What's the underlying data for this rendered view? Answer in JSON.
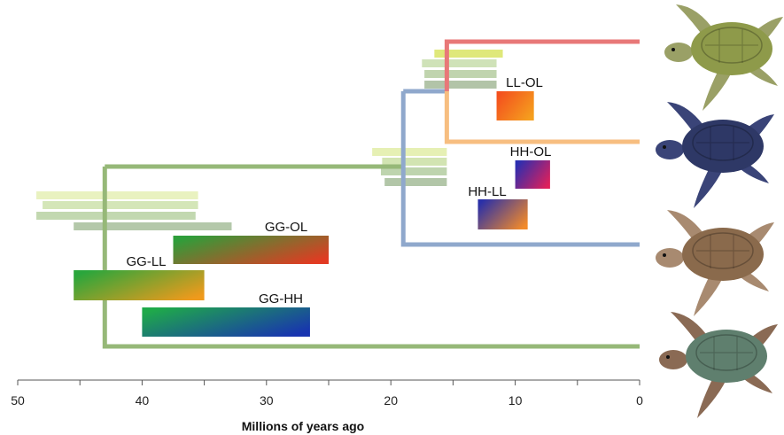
{
  "axis": {
    "label": "Millions of years ago",
    "ticks": [
      50,
      40,
      30,
      20,
      10,
      0
    ],
    "range": [
      50,
      0
    ]
  },
  "divergence_labels": [
    "GG-OL",
    "GG-LL",
    "GG-HH",
    "HH-OL",
    "HH-LL",
    "LL-OL"
  ],
  "tree": {
    "nodes_mya": {
      "root": 43,
      "inner": 19,
      "top": 15.5
    },
    "lineage_colors": {
      "top_branch": "#e87878",
      "second_branch": "#f7be80",
      "third_branch": "#8fa8cc",
      "bottom_branch": "#96b878",
      "stem": "#96b878"
    }
  },
  "divergence_boxes": [
    {
      "label": "GG-OL",
      "start_mya": 37.5,
      "end_mya": 25,
      "color_from": "#2e9e3a",
      "color_to": "#e23a22"
    },
    {
      "label": "GG-LL",
      "start_mya": 45.5,
      "end_mya": 35,
      "color_from": "#2aa63c",
      "color_to": "#ef9a1c"
    },
    {
      "label": "GG-HH",
      "start_mya": 40,
      "end_mya": 26.5,
      "color_from": "#1fa94a",
      "color_to": "#1834b0"
    },
    {
      "label": "HH-OL",
      "start_mya": 10,
      "end_mya": 7.2,
      "color_from": "#2a2eb0",
      "color_to": "#e0205a"
    },
    {
      "label": "HH-LL",
      "start_mya": 13,
      "end_mya": 9,
      "color_from": "#2a30a8",
      "color_to": "#f28a2a"
    },
    {
      "label": "LL-OL",
      "start_mya": 11.5,
      "end_mya": 8.5,
      "color_from": "#f4501e",
      "color_to": "#f5a01e"
    }
  ],
  "interval_bars": [
    {
      "start_mya": 48.5,
      "end_mya": 35.5,
      "color": "#e9f2c0"
    },
    {
      "start_mya": 48,
      "end_mya": 35.5,
      "color": "#d4e6b8"
    },
    {
      "start_mya": 48.5,
      "end_mya": 35.7,
      "color": "#c2d8b0"
    },
    {
      "start_mya": 45.5,
      "end_mya": 32.8,
      "color": "#b4c8aa"
    },
    {
      "start_mya": 21.5,
      "end_mya": 15.5,
      "color": "#e6f0b4"
    },
    {
      "start_mya": 20.7,
      "end_mya": 15.5,
      "color": "#d2e4b2"
    },
    {
      "start_mya": 20.8,
      "end_mya": 15.5,
      "color": "#bed4ae"
    },
    {
      "start_mya": 20.5,
      "end_mya": 15.5,
      "color": "#b2c6a8"
    },
    {
      "start_mya": 16.5,
      "end_mya": 11,
      "color": "#dfe87a"
    },
    {
      "start_mya": 17.5,
      "end_mya": 11.5,
      "color": "#cfe2b8"
    },
    {
      "start_mya": 17.3,
      "end_mya": 11.5,
      "color": "#c0d4ae"
    },
    {
      "start_mya": 17.3,
      "end_mya": 11.5,
      "color": "#b2c4a8"
    }
  ],
  "turtles": [
    {
      "name": "olive-ridley-turtle-icon",
      "shell": "#8e9a4a",
      "skin": "#9aa066"
    },
    {
      "name": "hawksbill-dark-turtle-icon",
      "shell": "#2e3866",
      "skin": "#3a4478"
    },
    {
      "name": "hawksbill-mottled-turtle-icon",
      "shell": "#8a6a4c",
      "skin": "#a88a70"
    },
    {
      "name": "green-turtle-icon",
      "shell": "#5f7f6e",
      "skin": "#8a6a54"
    }
  ]
}
